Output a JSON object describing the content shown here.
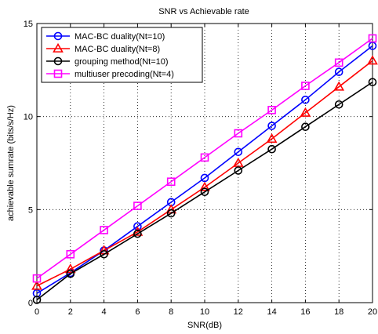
{
  "chart_data": {
    "type": "line",
    "title": "SNR vs Achievable rate",
    "xlabel": "SNR(dB)",
    "ylabel": "achievable sumrate (bits/s/Hz)",
    "x": [
      0,
      2,
      4,
      6,
      8,
      10,
      12,
      14,
      16,
      18,
      20
    ],
    "xlim": [
      0,
      20
    ],
    "ylim": [
      0,
      15
    ],
    "xticks": [
      "0",
      "2",
      "4",
      "6",
      "8",
      "10",
      "12",
      "14",
      "16",
      "18",
      "20"
    ],
    "yticks": [
      "0",
      "5",
      "10",
      "15"
    ],
    "grid": true,
    "legend_position": "top-left",
    "series": [
      {
        "name": "MAC-BC duality(Nt=10)",
        "color": "#0000ff",
        "marker": "circle",
        "values": [
          0.5,
          1.6,
          2.8,
          4.1,
          5.4,
          6.7,
          8.1,
          9.5,
          10.9,
          12.4,
          13.8
        ]
      },
      {
        "name": "MAC-BC duality(Nt=8)",
        "color": "#ff0000",
        "marker": "triangle",
        "values": [
          0.9,
          1.8,
          2.8,
          3.8,
          5.0,
          6.2,
          7.5,
          8.8,
          10.2,
          11.6,
          13.0
        ]
      },
      {
        "name": "grouping method(Nt=10)",
        "color": "#000000",
        "marker": "circle",
        "values": [
          0.15,
          1.55,
          2.6,
          3.7,
          4.8,
          5.95,
          7.1,
          8.25,
          9.45,
          10.65,
          11.85
        ]
      },
      {
        "name": "multiuser precoding(Nt=4)",
        "color": "#ff00ff",
        "marker": "square",
        "values": [
          1.3,
          2.6,
          3.9,
          5.2,
          6.5,
          7.8,
          9.1,
          10.35,
          11.65,
          12.9,
          14.2
        ]
      }
    ]
  }
}
